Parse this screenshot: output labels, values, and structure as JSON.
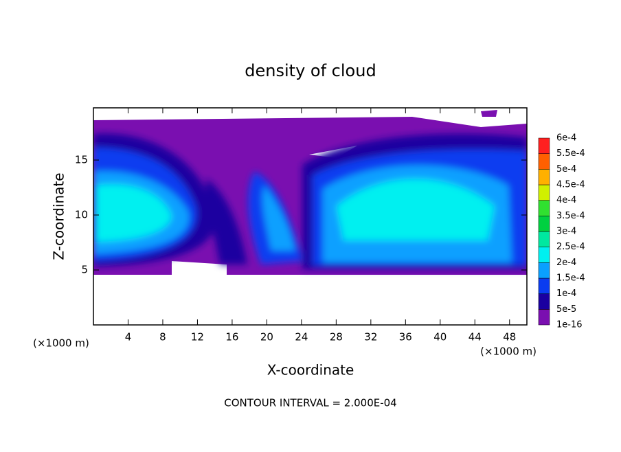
{
  "chart_data": {
    "type": "contour",
    "title": "density of cloud",
    "x_label": "X-coordinate",
    "y_label": "Z-coordinate",
    "x_unit_left": "(×1000 m)",
    "x_unit_right": "(×1000 m)",
    "footnote": "CONTOUR INTERVAL = 2.000E-04",
    "xlim": [
      0,
      50
    ],
    "xticks": [
      4,
      8,
      12,
      16,
      20,
      24,
      28,
      32,
      36,
      40,
      44,
      48
    ],
    "ylim": [
      0,
      19.75
    ],
    "yticks": [
      5,
      10,
      15
    ],
    "colorbar": {
      "levels": [
        {
          "value": 1e-16,
          "label": "1e-16"
        },
        {
          "value": 5e-05,
          "label": "5e-5"
        },
        {
          "value": 0.0001,
          "label": "1e-4"
        },
        {
          "value": 0.00015,
          "label": "1.5e-4"
        },
        {
          "value": 0.0002,
          "label": "2e-4"
        },
        {
          "value": 0.00025,
          "label": "2.5e-4"
        },
        {
          "value": 0.0003,
          "label": "3e-4"
        },
        {
          "value": 0.00035,
          "label": "3.5e-4"
        },
        {
          "value": 0.0004,
          "label": "4e-4"
        },
        {
          "value": 0.00045,
          "label": "4.5e-4"
        },
        {
          "value": 0.0005,
          "label": "5e-4"
        },
        {
          "value": 0.00055,
          "label": "5.5e-4"
        },
        {
          "value": 0.0006,
          "label": "6e-4"
        }
      ],
      "colors": [
        "#7a0fb0",
        "#1a00a0",
        "#0a3cf0",
        "#0aa0ff",
        "#00f0f0",
        "#00e8a0",
        "#00d040",
        "#30e030",
        "#d0f000",
        "#ffb000",
        "#ff6000",
        "#ff2020",
        "#ff9090"
      ]
    }
  }
}
